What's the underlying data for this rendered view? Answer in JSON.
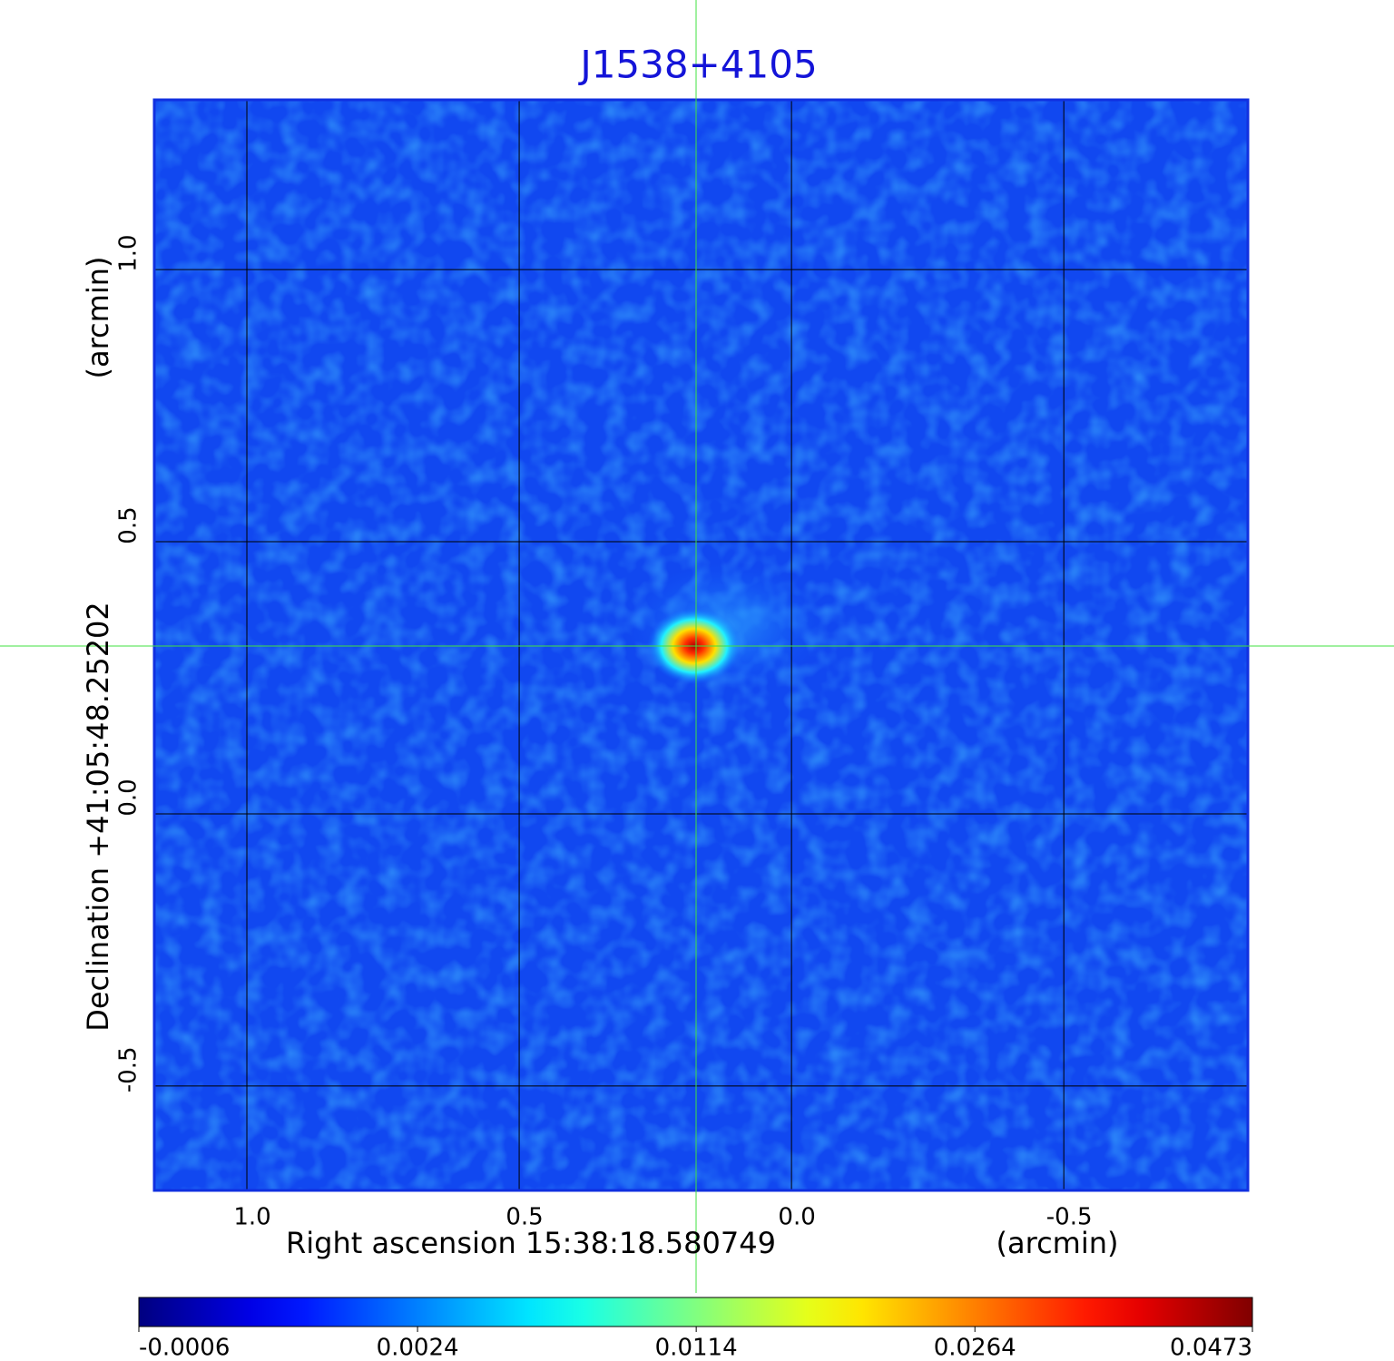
{
  "chart_data": {
    "type": "image",
    "title": "J1538+4105",
    "x_label": "Right ascension  15:38:18.580749",
    "x_unit": "(arcmin)",
    "y_label": "Declination  +41:05:48.25202",
    "y_unit": "(arcmin)",
    "xlim": [
      1.17,
      -0.838
    ],
    "ylim": [
      -0.692,
      1.312
    ],
    "xticks": [
      {
        "value": 1.0,
        "label": "1.0"
      },
      {
        "value": 0.5,
        "label": "0.5"
      },
      {
        "value": 0.0,
        "label": "0.0"
      },
      {
        "value": -0.5,
        "label": "-0.5"
      }
    ],
    "yticks": [
      {
        "value": -0.5,
        "label": "-0.5"
      },
      {
        "value": 0.0,
        "label": "0.0"
      },
      {
        "value": 0.5,
        "label": "0.5"
      },
      {
        "value": 1.0,
        "label": "1.0"
      }
    ],
    "grid": true,
    "colormap": "jet",
    "color_scale": "sqrt",
    "clim": [
      -0.0006,
      0.0473
    ],
    "colorbar_ticks": [
      -0.0006,
      0.0024,
      0.0114,
      0.0264,
      0.0473
    ]
  }
}
